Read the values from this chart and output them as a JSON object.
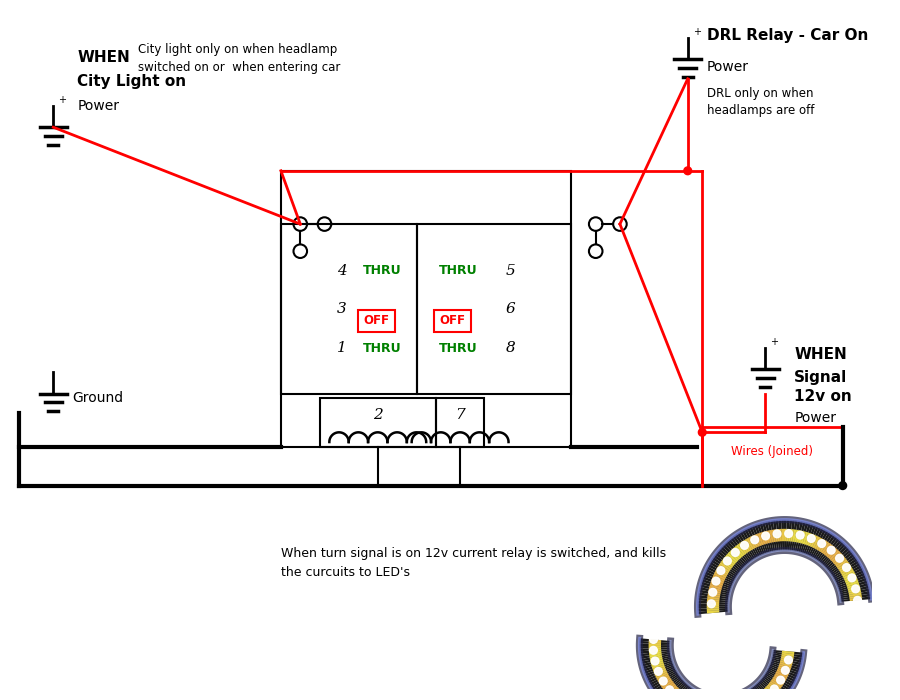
{
  "bg_color": "#ffffff",
  "labels": {
    "when_city": "WHEN",
    "city_light_on": "City Light on",
    "city_power": "Power",
    "city_desc1": "City light only on when headlamp",
    "city_desc2": "switched on or  when entering car",
    "drl_relay": "DRL Relay - Car On",
    "drl_power": "Power",
    "drl_desc1": "DRL only on when",
    "drl_desc2": "headlamps are off",
    "ground": "Ground",
    "when_signal": "WHEN",
    "signal_label": "Signal",
    "signal_12v": "12v on",
    "signal_power": "Power",
    "wires_joined": "Wires (Joined)",
    "bottom_text1": "When turn signal is on 12v current relay is switched, and kills",
    "bottom_text2": "the curcuits to LED's"
  }
}
